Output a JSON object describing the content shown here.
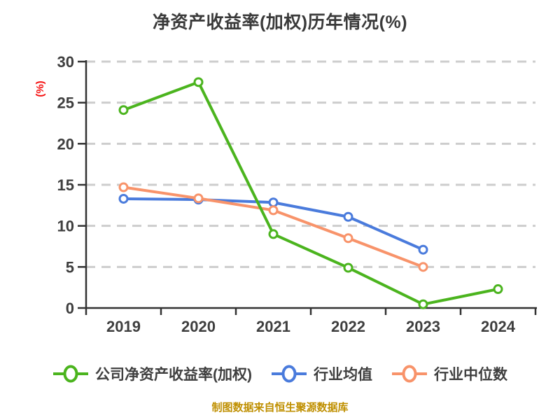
{
  "title": "净资产收益率(加权)历年情况(%)",
  "y_axis_label": "(%)",
  "caption": "制图数据来自恒生聚源数据库",
  "colors": {
    "company": "#4bb41e",
    "industry_mean": "#4a7bdc",
    "industry_median": "#f8936a",
    "grid": "#cdcdcd",
    "axis": "#323232",
    "tick_label": "#3e3e3e",
    "title_text": "#3a3a3a",
    "y_axis_label_color": "#f50f0f",
    "caption_color": "#bf8f00",
    "marker_fill": "#ffffff"
  },
  "chart_data": {
    "type": "line",
    "categories": [
      "2019",
      "2020",
      "2021",
      "2022",
      "2023",
      "2024"
    ],
    "series": [
      {
        "name": "公司净资产收益率(加权)",
        "color_key": "company",
        "values": [
          24.1,
          27.5,
          9.0,
          4.9,
          0.45,
          2.3
        ]
      },
      {
        "name": "行业均值",
        "color_key": "industry_mean",
        "values": [
          13.3,
          13.2,
          12.85,
          11.1,
          7.1,
          null
        ]
      },
      {
        "name": "行业中位数",
        "color_key": "industry_median",
        "values": [
          14.7,
          13.35,
          11.9,
          8.5,
          5.0,
          null
        ]
      }
    ],
    "ylim": [
      0,
      30
    ],
    "yticks": [
      0,
      5,
      10,
      15,
      20,
      25,
      30
    ],
    "grid": "dashed-horizontal",
    "legend_position": "bottom",
    "marker": "circle-white-filled"
  }
}
